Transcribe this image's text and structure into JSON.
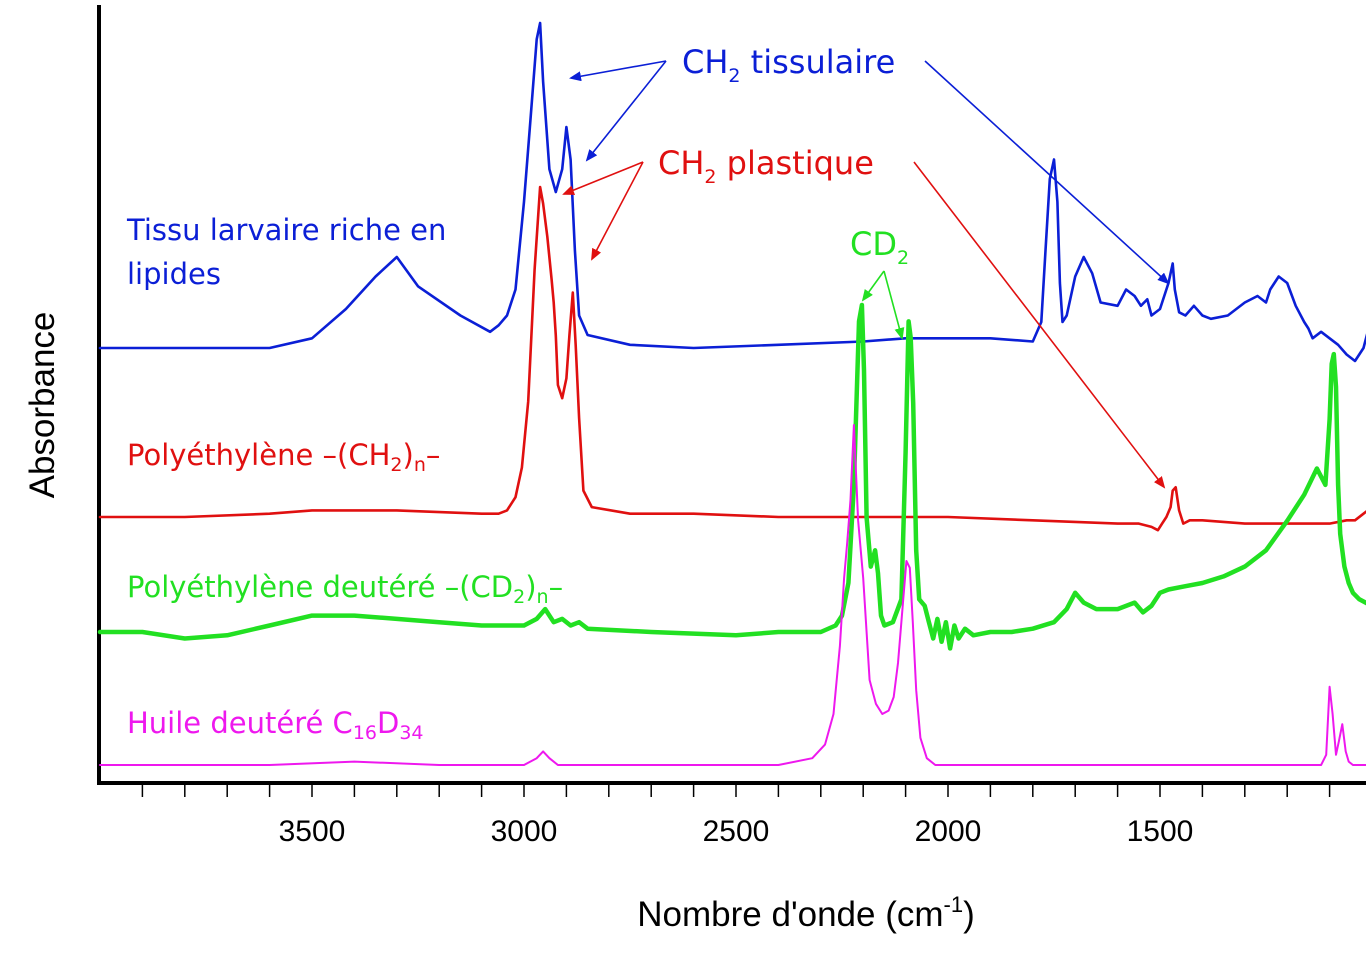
{
  "chart_data": {
    "type": "line",
    "title": "",
    "xlabel": "Nombre d'onde (cm",
    "xlabel_sup": "-1",
    "xlabel_close": ")",
    "ylabel": "Absorbance",
    "xlim": [
      4000,
      1000
    ],
    "x_reversed": true,
    "x_ticks": [
      3500,
      3000,
      2500,
      2000,
      1500
    ],
    "y_ticks_shown": false,
    "grid": false,
    "colors": {
      "tissu": "#0b1fd6",
      "polyethylene": "#e01010",
      "polyethylene_deutere": "#22e022",
      "huile": "#ee18ee"
    },
    "series_labels": {
      "tissu_line1": "Tissu larvaire riche en",
      "tissu_line2": "lipides",
      "pe_main": "Polyéthylène –(CH",
      "pe_sub": "2",
      "pe_close": ")",
      "pe_n": "n",
      "pe_end": "–",
      "pd_main": "Polyéthylène deutéré –(CD",
      "pd_sub": "2",
      "pd_close": ")",
      "pd_n": "n",
      "pd_end": "–",
      "huile_main": "Huile deutéré C",
      "huile_sub1": "16",
      "huile_d": "D",
      "huile_sub2": "34"
    },
    "annotations": {
      "ch2_tissulaire": {
        "base": "CH",
        "sub": "2",
        "rest": " tissulaire",
        "targets_cm1": [
          2965,
          2900,
          1465
        ]
      },
      "ch2_plastique": {
        "base": "CH",
        "sub": "2",
        "rest": " plastique",
        "targets_cm1": [
          2948,
          2885,
          1470
        ]
      },
      "cd2": {
        "base": "CD",
        "sub": "2",
        "rest": "",
        "targets_cm1": [
          2195,
          2090
        ]
      }
    },
    "series": [
      {
        "key": "tissu",
        "x": [
          4000,
          3800,
          3600,
          3500,
          3420,
          3350,
          3300,
          3250,
          3150,
          3080,
          3060,
          3040,
          3020,
          3000,
          2985,
          2970,
          2962,
          2955,
          2940,
          2925,
          2910,
          2900,
          2890,
          2880,
          2870,
          2850,
          2750,
          2600,
          2400,
          2200,
          2100,
          2000,
          1900,
          1800,
          1780,
          1770,
          1760,
          1750,
          1742,
          1736,
          1730,
          1720,
          1700,
          1680,
          1660,
          1640,
          1600,
          1580,
          1560,
          1545,
          1530,
          1520,
          1500,
          1480,
          1470,
          1465,
          1455,
          1440,
          1420,
          1400,
          1380,
          1340,
          1300,
          1270,
          1250,
          1240,
          1220,
          1200,
          1180,
          1160,
          1150,
          1140,
          1120,
          1100,
          1080,
          1060,
          1040,
          1020,
          1000
        ],
        "y": [
          0.0,
          0.0,
          0.0,
          0.03,
          0.12,
          0.22,
          0.28,
          0.19,
          0.1,
          0.05,
          0.07,
          0.1,
          0.18,
          0.45,
          0.7,
          0.95,
          1.0,
          0.82,
          0.55,
          0.48,
          0.55,
          0.68,
          0.58,
          0.3,
          0.1,
          0.04,
          0.01,
          0.0,
          0.01,
          0.02,
          0.03,
          0.03,
          0.03,
          0.02,
          0.08,
          0.3,
          0.52,
          0.58,
          0.45,
          0.2,
          0.08,
          0.1,
          0.22,
          0.28,
          0.23,
          0.14,
          0.13,
          0.18,
          0.16,
          0.13,
          0.15,
          0.1,
          0.12,
          0.2,
          0.26,
          0.18,
          0.11,
          0.1,
          0.13,
          0.1,
          0.09,
          0.1,
          0.14,
          0.16,
          0.14,
          0.18,
          0.22,
          0.2,
          0.13,
          0.08,
          0.06,
          0.03,
          0.05,
          0.03,
          0.01,
          -0.02,
          -0.04,
          0.0,
          0.1
        ]
      },
      {
        "key": "polyethylene",
        "x": [
          4000,
          3800,
          3600,
          3500,
          3400,
          3300,
          3100,
          3060,
          3040,
          3020,
          3005,
          2990,
          2975,
          2962,
          2955,
          2945,
          2935,
          2930,
          2925,
          2920,
          2910,
          2900,
          2893,
          2885,
          2878,
          2870,
          2860,
          2840,
          2750,
          2600,
          2400,
          2200,
          2000,
          1800,
          1600,
          1550,
          1520,
          1505,
          1495,
          1485,
          1475,
          1470,
          1463,
          1455,
          1445,
          1430,
          1400,
          1300,
          1200,
          1100,
          1060,
          1040,
          1020,
          1000
        ],
        "y": [
          0.0,
          0.0,
          0.01,
          0.02,
          0.02,
          0.02,
          0.01,
          0.01,
          0.02,
          0.06,
          0.15,
          0.35,
          0.75,
          1.0,
          0.95,
          0.85,
          0.72,
          0.65,
          0.55,
          0.4,
          0.36,
          0.42,
          0.55,
          0.68,
          0.52,
          0.3,
          0.08,
          0.03,
          0.01,
          0.01,
          0.0,
          0.0,
          0.0,
          -0.01,
          -0.02,
          -0.02,
          -0.03,
          -0.04,
          -0.02,
          0.0,
          0.03,
          0.08,
          0.09,
          0.02,
          -0.02,
          -0.01,
          -0.01,
          -0.02,
          -0.02,
          -0.02,
          -0.01,
          -0.01,
          0.01,
          0.03
        ]
      },
      {
        "key": "polyethylene_deutere",
        "x": [
          4000,
          3900,
          3800,
          3700,
          3600,
          3500,
          3400,
          3300,
          3200,
          3100,
          3000,
          2970,
          2950,
          2930,
          2910,
          2890,
          2870,
          2850,
          2700,
          2500,
          2400,
          2300,
          2265,
          2250,
          2235,
          2222,
          2210,
          2203,
          2198,
          2192,
          2182,
          2172,
          2165,
          2158,
          2150,
          2130,
          2110,
          2100,
          2093,
          2088,
          2082,
          2075,
          2068,
          2055,
          2045,
          2035,
          2025,
          2015,
          2005,
          1995,
          1985,
          1975,
          1960,
          1940,
          1900,
          1850,
          1800,
          1750,
          1720,
          1700,
          1680,
          1650,
          1600,
          1560,
          1540,
          1520,
          1500,
          1480,
          1440,
          1400,
          1350,
          1300,
          1250,
          1200,
          1160,
          1130,
          1110,
          1100,
          1095,
          1090,
          1085,
          1080,
          1075,
          1065,
          1055,
          1045,
          1030,
          1015,
          1000
        ],
        "y": [
          0.0,
          0.0,
          -0.02,
          -0.01,
          0.02,
          0.05,
          0.05,
          0.04,
          0.03,
          0.02,
          0.02,
          0.04,
          0.07,
          0.03,
          0.04,
          0.02,
          0.03,
          0.01,
          0.0,
          -0.01,
          0.0,
          0.0,
          0.02,
          0.05,
          0.15,
          0.45,
          0.95,
          1.0,
          0.8,
          0.35,
          0.2,
          0.25,
          0.18,
          0.05,
          0.02,
          0.03,
          0.1,
          0.55,
          0.95,
          0.9,
          0.7,
          0.25,
          0.1,
          0.08,
          0.03,
          -0.02,
          0.04,
          -0.03,
          0.03,
          -0.05,
          0.02,
          -0.02,
          0.01,
          -0.01,
          0.0,
          0.0,
          0.01,
          0.03,
          0.07,
          0.12,
          0.09,
          0.07,
          0.07,
          0.09,
          0.06,
          0.08,
          0.12,
          0.13,
          0.14,
          0.15,
          0.17,
          0.2,
          0.25,
          0.34,
          0.42,
          0.5,
          0.45,
          0.65,
          0.82,
          0.85,
          0.75,
          0.45,
          0.3,
          0.2,
          0.15,
          0.12,
          0.1,
          0.09,
          0.08
        ]
      },
      {
        "key": "huile",
        "x": [
          4000,
          3800,
          3600,
          3400,
          3200,
          3000,
          2970,
          2955,
          2940,
          2920,
          2800,
          2600,
          2400,
          2320,
          2290,
          2270,
          2255,
          2245,
          2238,
          2230,
          2222,
          2212,
          2200,
          2185,
          2170,
          2155,
          2140,
          2128,
          2118,
          2108,
          2098,
          2090,
          2083,
          2075,
          2065,
          2050,
          2030,
          2000,
          1900,
          1800,
          1600,
          1400,
          1200,
          1120,
          1108,
          1100,
          1093,
          1085,
          1078,
          1070,
          1062,
          1055,
          1045,
          1030,
          1000
        ],
        "y": [
          0.0,
          0.0,
          0.0,
          0.01,
          0.0,
          0.0,
          0.02,
          0.04,
          0.02,
          0.0,
          0.0,
          0.0,
          0.0,
          0.02,
          0.06,
          0.15,
          0.35,
          0.55,
          0.65,
          0.78,
          1.0,
          0.72,
          0.55,
          0.25,
          0.18,
          0.15,
          0.16,
          0.2,
          0.3,
          0.45,
          0.6,
          0.58,
          0.42,
          0.22,
          0.08,
          0.02,
          0.0,
          0.0,
          0.0,
          0.0,
          0.0,
          0.0,
          0.0,
          0.0,
          0.03,
          0.23,
          0.15,
          0.03,
          0.07,
          0.12,
          0.04,
          0.01,
          0.0,
          0.0,
          0.0
        ]
      }
    ]
  }
}
